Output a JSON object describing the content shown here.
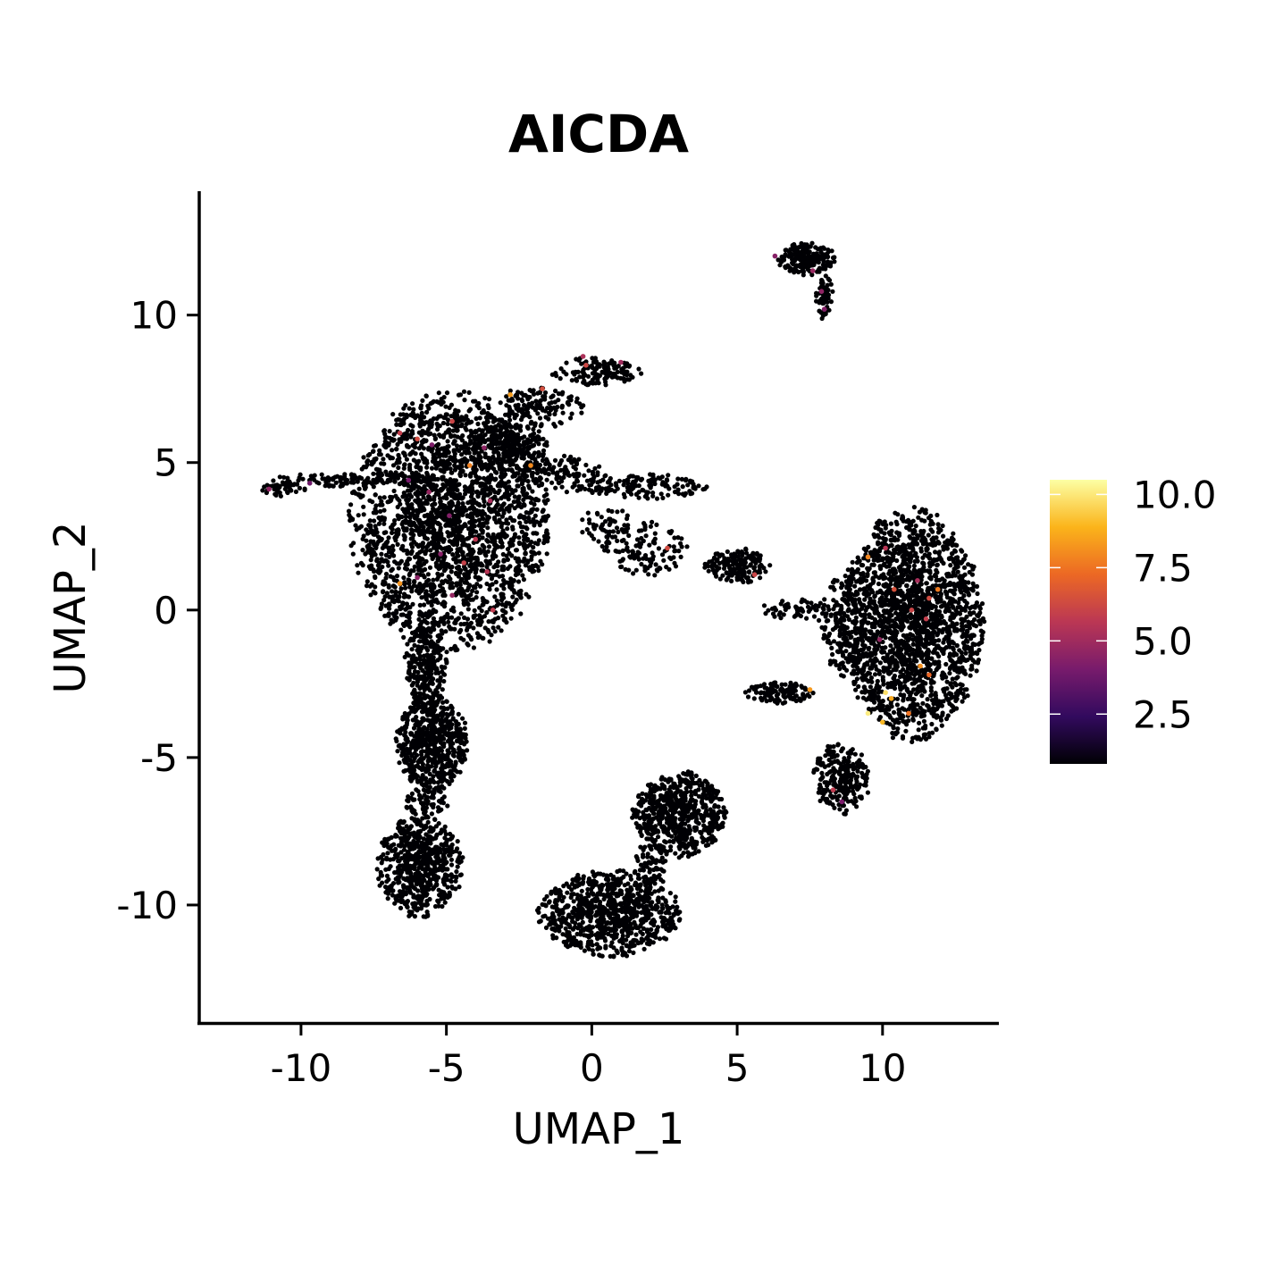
{
  "chart_data": {
    "type": "scatter",
    "title": "AICDA",
    "xlabel": "UMAP_1",
    "ylabel": "UMAP_2",
    "xlim": [
      -13.5,
      14
    ],
    "ylim": [
      -14,
      14.2
    ],
    "x_ticks": [
      -10,
      -5,
      0,
      5,
      10
    ],
    "y_ticks": [
      -10,
      -5,
      0,
      5,
      10
    ],
    "x_tick_labels": [
      "-10",
      "-5",
      "0",
      "5",
      "10"
    ],
    "y_tick_labels": [
      "-10",
      "-5",
      "0",
      "5",
      "10"
    ],
    "grid": false,
    "legend_placement": "right",
    "colorbar": {
      "palette": "inferno",
      "min": 0.8,
      "max": 10.5,
      "ticks": [
        2.5,
        5.0,
        7.5,
        10.0
      ],
      "tick_labels": [
        "2.5",
        "5.0",
        "7.5",
        "10.0"
      ],
      "colors": [
        "#000004",
        "#320a5e",
        "#781b6c",
        "#bb3754",
        "#ec6824",
        "#fbb41a",
        "#fcffa4"
      ]
    },
    "baseline_value": 0,
    "clusters": [
      {
        "cx": -4.9,
        "cy": 3.0,
        "rx": 2.8,
        "ry": 3.6,
        "n": 2400
      },
      {
        "cx": -2.9,
        "cy": 5.5,
        "rx": 1.2,
        "ry": 0.8,
        "n": 260
      },
      {
        "cx": -2.0,
        "cy": 6.8,
        "rx": 1.4,
        "ry": 0.6,
        "n": 160
      },
      {
        "cx": 0.2,
        "cy": 8.1,
        "rx": 1.3,
        "ry": 0.4,
        "n": 140
      },
      {
        "cx": -1.0,
        "cy": 4.6,
        "rx": 1.2,
        "ry": 0.5,
        "n": 120
      },
      {
        "cx": 1.8,
        "cy": 4.2,
        "rx": 1.8,
        "ry": 0.35,
        "n": 140
      },
      {
        "cx": 0.5,
        "cy": 2.9,
        "rx": 0.8,
        "ry": 0.5,
        "n": 50
      },
      {
        "cx": 1.8,
        "cy": 2.1,
        "rx": 1.2,
        "ry": 0.8,
        "n": 120
      },
      {
        "cx": 5.0,
        "cy": 1.5,
        "rx": 0.9,
        "ry": 0.5,
        "n": 160
      },
      {
        "cx": 7.0,
        "cy": 0.0,
        "rx": 1.0,
        "ry": 0.3,
        "n": 60
      },
      {
        "cx": -8.4,
        "cy": 4.4,
        "rx": 2.5,
        "ry": 0.2,
        "n": 110
      },
      {
        "cx": -10.6,
        "cy": 4.1,
        "rx": 0.6,
        "ry": 0.2,
        "n": 40
      },
      {
        "cx": -5.7,
        "cy": -1.8,
        "rx": 0.6,
        "ry": 1.3,
        "n": 240
      },
      {
        "cx": -5.5,
        "cy": -4.5,
        "rx": 1.0,
        "ry": 1.4,
        "n": 620
      },
      {
        "cx": -5.9,
        "cy": -8.7,
        "rx": 1.2,
        "ry": 1.4,
        "n": 620
      },
      {
        "cx": -5.7,
        "cy": -6.6,
        "rx": 0.6,
        "ry": 0.5,
        "n": 70
      },
      {
        "cx": 3.0,
        "cy": -6.9,
        "rx": 1.3,
        "ry": 1.2,
        "n": 620
      },
      {
        "cx": 2.0,
        "cy": -8.8,
        "rx": 0.5,
        "ry": 0.8,
        "n": 80
      },
      {
        "cx": 0.6,
        "cy": -10.3,
        "rx": 2.0,
        "ry": 1.2,
        "n": 820
      },
      {
        "cx": 11.0,
        "cy": -0.5,
        "rx": 2.0,
        "ry": 3.2,
        "n": 2000
      },
      {
        "cx": 8.8,
        "cy": -0.5,
        "rx": 0.8,
        "ry": 1.5,
        "n": 200
      },
      {
        "cx": 6.5,
        "cy": -2.8,
        "rx": 1.0,
        "ry": 0.3,
        "n": 120
      },
      {
        "cx": 8.6,
        "cy": -5.7,
        "rx": 0.8,
        "ry": 1.0,
        "n": 240
      },
      {
        "cx": 7.4,
        "cy": 11.9,
        "rx": 0.8,
        "ry": 0.45,
        "n": 200
      },
      {
        "cx": 8.0,
        "cy": 10.6,
        "rx": 0.25,
        "ry": 0.6,
        "n": 60
      }
    ],
    "expressing_points": [
      {
        "x": -11.1,
        "y": 4.1,
        "value": 4.6
      },
      {
        "x": -9.7,
        "y": 4.3,
        "value": 3.8
      },
      {
        "x": -6.6,
        "y": 6.0,
        "value": 5.9
      },
      {
        "x": -6.0,
        "y": 5.8,
        "value": 6.3
      },
      {
        "x": -5.5,
        "y": 5.6,
        "value": 4.2
      },
      {
        "x": -4.8,
        "y": 6.4,
        "value": 6.1
      },
      {
        "x": -4.2,
        "y": 4.9,
        "value": 7.8
      },
      {
        "x": -3.7,
        "y": 5.5,
        "value": 4.6
      },
      {
        "x": -6.3,
        "y": 4.4,
        "value": 4.0
      },
      {
        "x": -5.6,
        "y": 4.0,
        "value": 4.8
      },
      {
        "x": -4.9,
        "y": 3.2,
        "value": 4.3
      },
      {
        "x": -4.0,
        "y": 2.4,
        "value": 5.7
      },
      {
        "x": -3.5,
        "y": 3.7,
        "value": 5.2
      },
      {
        "x": -5.2,
        "y": 1.9,
        "value": 4.4
      },
      {
        "x": -4.4,
        "y": 1.6,
        "value": 6.0
      },
      {
        "x": -3.6,
        "y": 1.3,
        "value": 5.6
      },
      {
        "x": -6.6,
        "y": 0.9,
        "value": 8.2
      },
      {
        "x": -6.0,
        "y": 1.1,
        "value": 4.5
      },
      {
        "x": -4.8,
        "y": 0.5,
        "value": 4.7
      },
      {
        "x": -3.4,
        "y": 0.0,
        "value": 5.8
      },
      {
        "x": -2.8,
        "y": 7.3,
        "value": 8.4
      },
      {
        "x": -1.7,
        "y": 7.5,
        "value": 6.4
      },
      {
        "x": -2.1,
        "y": 4.9,
        "value": 8.0
      },
      {
        "x": -0.2,
        "y": 8.3,
        "value": 6.2
      },
      {
        "x": 1.0,
        "y": 8.4,
        "value": 5.0
      },
      {
        "x": 2.6,
        "y": 2.1,
        "value": 6.3
      },
      {
        "x": 5.6,
        "y": 1.2,
        "value": 6.1
      },
      {
        "x": 6.3,
        "y": 12.0,
        "value": 4.4
      },
      {
        "x": 7.6,
        "y": 11.5,
        "value": 4.8
      },
      {
        "x": 7.9,
        "y": 10.8,
        "value": 4.6
      },
      {
        "x": 8.0,
        "y": 10.2,
        "value": 4.3
      },
      {
        "x": 9.5,
        "y": 1.8,
        "value": 7.9
      },
      {
        "x": 10.1,
        "y": 2.1,
        "value": 5.6
      },
      {
        "x": 10.4,
        "y": 0.7,
        "value": 6.5
      },
      {
        "x": 11.2,
        "y": 1.0,
        "value": 5.2
      },
      {
        "x": 11.6,
        "y": 0.4,
        "value": 6.3
      },
      {
        "x": 11.9,
        "y": 0.7,
        "value": 7.7
      },
      {
        "x": 11.0,
        "y": 0.0,
        "value": 6.1
      },
      {
        "x": 11.5,
        "y": -0.3,
        "value": 5.9
      },
      {
        "x": 9.9,
        "y": -1.0,
        "value": 4.7
      },
      {
        "x": 11.3,
        "y": -1.9,
        "value": 8.1
      },
      {
        "x": 11.6,
        "y": -2.2,
        "value": 7.2
      },
      {
        "x": 10.1,
        "y": -2.8,
        "value": 9.8
      },
      {
        "x": 10.3,
        "y": -3.0,
        "value": 8.6
      },
      {
        "x": 9.5,
        "y": -3.5,
        "value": 10.1
      },
      {
        "x": 10.0,
        "y": -3.8,
        "value": 9.0
      },
      {
        "x": 10.9,
        "y": -3.5,
        "value": 7.5
      },
      {
        "x": 7.5,
        "y": -2.7,
        "value": 8.3
      },
      {
        "x": 8.3,
        "y": -6.1,
        "value": 5.8
      },
      {
        "x": 8.6,
        "y": -6.5,
        "value": 4.1
      },
      {
        "x": -0.3,
        "y": 8.6,
        "value": 5.3
      }
    ]
  }
}
